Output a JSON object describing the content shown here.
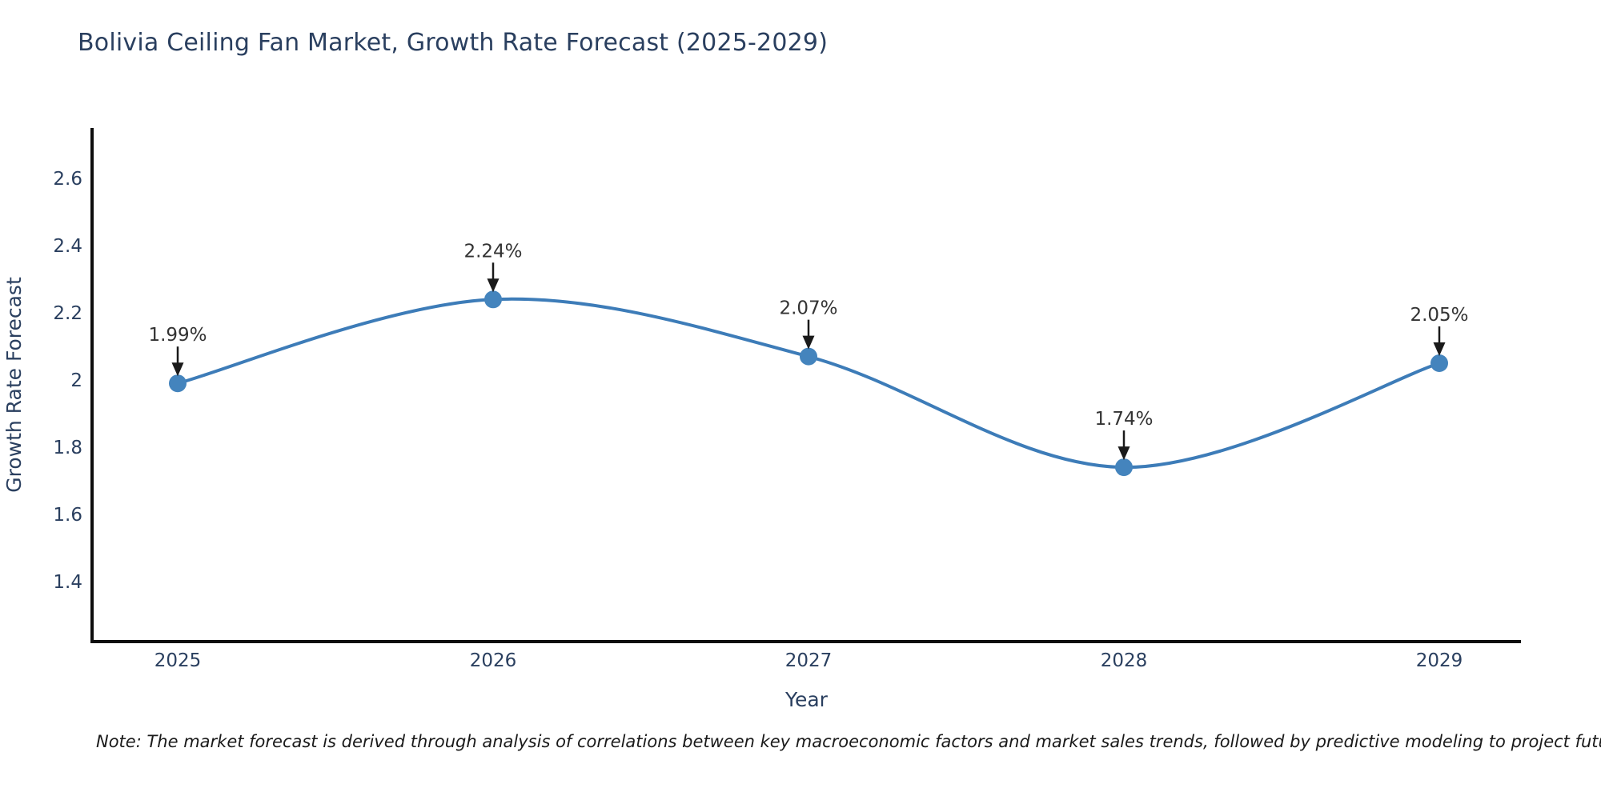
{
  "chart": {
    "title": "Bolivia Ceiling Fan Market, Growth Rate Forecast (2025-2029)",
    "note": "Note: The market forecast is derived through analysis of correlations between key macroeconomic factors and market sales trends, followed by predictive modeling to project future sales",
    "colors": {
      "title_text": "#2a3f5f",
      "tick_text": "#2a3f5f",
      "axis_title_text": "#2a3f5f",
      "axis_line": "#0d0d0d",
      "series_line": "#3d7cb8",
      "marker_fill": "#4484bd",
      "annotation_text": "#333333",
      "annotation_arrow": "#1a1a1a",
      "background": "#ffffff"
    }
  },
  "chart_data": {
    "type": "line",
    "title": "Bolivia Ceiling Fan Market, Growth Rate Forecast (2025-2029)",
    "xlabel": "Year",
    "ylabel": "Growth Rate Forecast",
    "x": [
      2025,
      2026,
      2027,
      2028,
      2029
    ],
    "series": [
      {
        "name": "Growth Rate Forecast",
        "values": [
          1.99,
          2.24,
          2.07,
          1.74,
          2.05
        ],
        "point_labels": [
          "1.99%",
          "2.24%",
          "2.07%",
          "1.74%",
          "2.05%"
        ]
      }
    ],
    "xticklabels": [
      "2025",
      "2026",
      "2027",
      "2028",
      "2029"
    ],
    "yticks": [
      1.4,
      1.6,
      1.8,
      2,
      2.2,
      2.4,
      2.6
    ],
    "ylim": [
      1.22,
      2.75
    ],
    "xlim": [
      2024.73,
      2029.26
    ],
    "grid": false,
    "legend": "none",
    "line_shape": "spline",
    "markers": true,
    "annotations": "value labels above each point with downward arrows"
  }
}
